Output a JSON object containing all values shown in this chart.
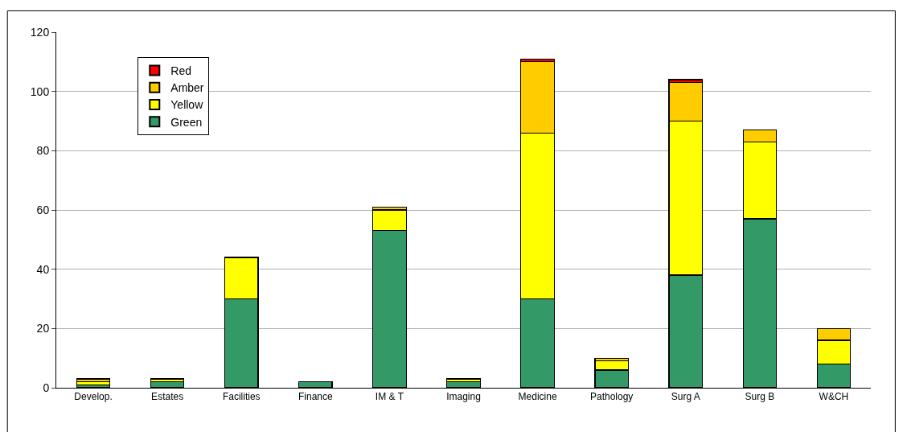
{
  "chart_data": {
    "type": "bar",
    "stacked": true,
    "categories": [
      "Develop.",
      "Estates",
      "Facilities",
      "Finance",
      "IM & T",
      "Imaging",
      "Medicine",
      "Pathology",
      "Surg A",
      "Surg B",
      "W&CH"
    ],
    "series": [
      {
        "name": "Green",
        "color": "#339966",
        "values": [
          1,
          2,
          30,
          2,
          53,
          2,
          30,
          6,
          38,
          57,
          8
        ]
      },
      {
        "name": "Yellow",
        "color": "#ffff00",
        "values": [
          1,
          1,
          14,
          null,
          7,
          1,
          56,
          3,
          52,
          26,
          8
        ]
      },
      {
        "name": "Amber",
        "color": "#ffcc00",
        "values": [
          1,
          null,
          null,
          null,
          1,
          null,
          24,
          1,
          13,
          4,
          4
        ]
      },
      {
        "name": "Red",
        "color": "#ff0000",
        "values": [
          null,
          null,
          null,
          null,
          null,
          null,
          1,
          null,
          1,
          null,
          null
        ]
      }
    ],
    "ylim": [
      0,
      120
    ],
    "yticks": [
      0,
      20,
      40,
      60,
      80,
      100,
      120
    ],
    "grid": "y",
    "legend": "top left"
  }
}
